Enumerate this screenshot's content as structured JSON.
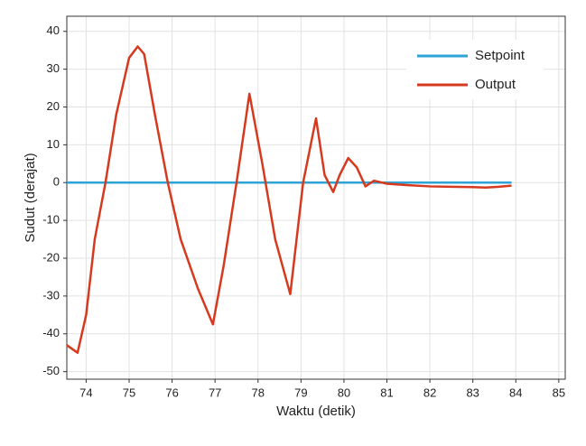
{
  "chart_data": {
    "type": "line",
    "xlabel": "Waktu (detik)",
    "ylabel": "Sudut (derajat)",
    "series": [
      {
        "name": "Setpoint",
        "color": "#2ea3d8",
        "x": [
          73.55,
          83.9
        ],
        "values": [
          0,
          0
        ]
      },
      {
        "name": "Output",
        "color": "#d63a1e",
        "x": [
          73.55,
          73.8,
          74.0,
          74.2,
          74.45,
          74.7,
          75.0,
          75.2,
          75.35,
          75.6,
          75.9,
          76.2,
          76.6,
          76.95,
          77.2,
          77.5,
          77.8,
          78.1,
          78.4,
          78.75,
          79.05,
          79.35,
          79.55,
          79.75,
          79.9,
          80.1,
          80.3,
          80.5,
          80.7,
          81.0,
          81.5,
          82.0,
          82.5,
          83.0,
          83.3,
          83.6,
          83.9
        ],
        "values": [
          -43,
          -45,
          -35,
          -15,
          0,
          18,
          33,
          36,
          34,
          18,
          0,
          -15,
          -28,
          -37.5,
          -22,
          0,
          23.5,
          5,
          -15,
          -29.5,
          0,
          17,
          2,
          -2.5,
          2,
          6.5,
          4,
          -1,
          0.5,
          -0.3,
          -0.7,
          -1,
          -1.1,
          -1.2,
          -1.3,
          -1.1,
          -0.8
        ]
      }
    ],
    "xlim": [
      73.55,
      85.15
    ],
    "xticks": [
      74,
      75,
      76,
      77,
      78,
      79,
      80,
      81,
      82,
      83,
      84,
      85
    ],
    "ylim": [
      -52,
      44
    ],
    "yticks": [
      -50,
      -40,
      -30,
      -20,
      -10,
      0,
      10,
      20,
      30,
      40
    ],
    "grid": true,
    "legend": "upper right"
  }
}
